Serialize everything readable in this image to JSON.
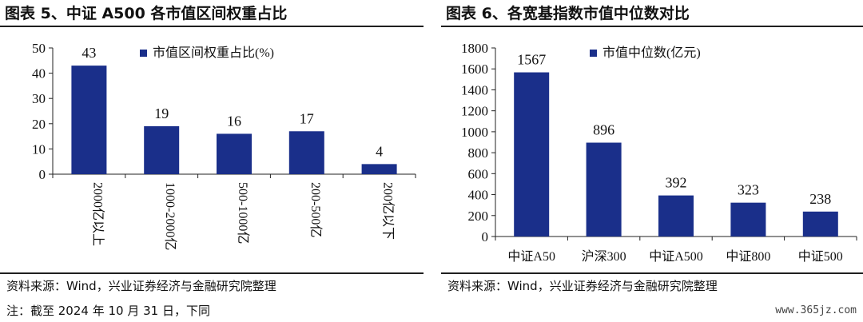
{
  "left": {
    "title": "图表 5、中证 A500 各市值区间权重占比",
    "source": "资料来源：Wind，兴业证券经济与金融研究院整理"
  },
  "right": {
    "title": "图表 6、各宽基指数市值中位数对比",
    "source": "资料来源：Wind，兴业证券经济与金融研究院整理"
  },
  "note": "注：截至 2024 年 10 月 31 日，下同",
  "watermark": "www.365jz.com",
  "colors": {
    "bar": "#1a2f8a",
    "axis": "#222222"
  },
  "chart_data": [
    {
      "type": "bar",
      "title": "图表 5、中证 A500 各市值区间权重占比",
      "categories": [
        "2000亿以上",
        "1000-2000亿",
        "500-1000亿",
        "200-500亿",
        "200亿以下"
      ],
      "series": [
        {
          "name": "市值区间权重占比(%)",
          "values": [
            43,
            19,
            16,
            17,
            4
          ]
        }
      ],
      "data_labels": [
        "43",
        "19",
        "16",
        "17",
        "4"
      ],
      "ylim": [
        0,
        50
      ],
      "yticks": [
        0,
        10,
        20,
        30,
        40,
        50
      ],
      "ytick_labels": [
        "0",
        "10",
        "20",
        "30",
        "40",
        "50"
      ],
      "xlabel": "",
      "ylabel": "",
      "legend": "top-right",
      "grid": false
    },
    {
      "type": "bar",
      "title": "图表 6、各宽基指数市值中位数对比",
      "categories": [
        "中证A50",
        "沪深300",
        "中证A500",
        "中证800",
        "中证500"
      ],
      "series": [
        {
          "name": "市值中位数(亿元)",
          "values": [
            1567,
            896,
            392,
            323,
            238
          ]
        }
      ],
      "data_labels": [
        "1567",
        "896",
        "392",
        "323",
        "238"
      ],
      "ylim": [
        0,
        1800
      ],
      "yticks": [
        0,
        200,
        400,
        600,
        800,
        1000,
        1200,
        1400,
        1600,
        1800
      ],
      "ytick_labels": [
        "0",
        "200",
        "400",
        "600",
        "800",
        "1000",
        "1200",
        "1400",
        "1600",
        "1800"
      ],
      "xlabel": "",
      "ylabel": "",
      "legend": "top-right",
      "grid": false
    }
  ]
}
